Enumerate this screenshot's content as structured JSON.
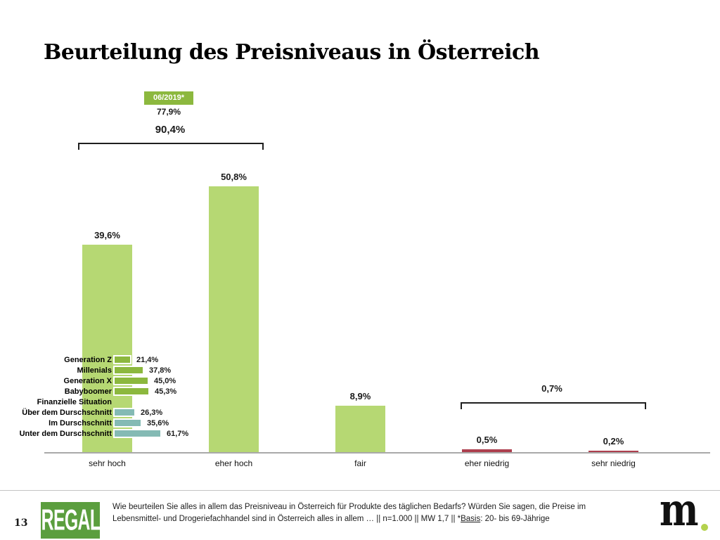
{
  "page": {
    "number": "13"
  },
  "title": "Beurteilung des Preisniveaus in Österreich",
  "annotations": {
    "badge_label": "06/2019*",
    "badge_value": "77,9%",
    "bracket_high_label": "90,4%",
    "bracket_low_label": "0,7%"
  },
  "chart_data": {
    "type": "bar",
    "title": "Beurteilung des Preisniveaus in Österreich",
    "unit": "%",
    "ylim": [
      0,
      100
    ],
    "grid": false,
    "categories": [
      "sehr hoch",
      "eher hoch",
      "fair",
      "eher niedrig",
      "sehr niedrig"
    ],
    "values": [
      39.6,
      50.8,
      8.9,
      0.5,
      0.2
    ],
    "value_labels": [
      "39,6%",
      "50,8%",
      "8,9%",
      "0,5%",
      "0,2%"
    ],
    "bar_color_keys": [
      "green",
      "green",
      "green",
      "red",
      "red"
    ],
    "annotations": [
      {
        "type": "badge",
        "label": "06/2019*",
        "value": "77,9%"
      },
      {
        "type": "bracket",
        "label": "90,4%",
        "covers": [
          "sehr hoch",
          "eher hoch"
        ]
      },
      {
        "type": "bracket",
        "label": "0,7%",
        "covers": [
          "eher niedrig",
          "sehr niedrig"
        ]
      }
    ],
    "breakdown": [
      {
        "label": "Generation Z",
        "value": 21.4,
        "display": "21,4%",
        "group": "generation"
      },
      {
        "label": "Millenials",
        "value": 37.8,
        "display": "37,8%",
        "group": "generation"
      },
      {
        "label": "Generation X",
        "value": 45.0,
        "display": "45,0%",
        "group": "generation"
      },
      {
        "label": "Babyboomer",
        "value": 45.3,
        "display": "45,3%",
        "group": "generation"
      },
      {
        "label": "Finanzielle Situation",
        "header": true
      },
      {
        "label": "Über dem Durschschnitt",
        "value": 26.3,
        "display": "26,3%",
        "group": "finanzielle-situation"
      },
      {
        "label": "Im Durschschnitt",
        "value": 35.6,
        "display": "35,6%",
        "group": "finanzielle-situation"
      },
      {
        "label": "Unter dem Durschschnitt",
        "value": 61.7,
        "display": "61,7%",
        "group": "finanzielle-situation"
      }
    ]
  },
  "footer": {
    "line1": "Wie beurteilen Sie alles in allem das Preisniveau in Österreich für Produkte des täglichen Bedarfs? Würden Sie sagen, die Preise im",
    "line2_pre": "Lebensmittel- und Drogeriefachhandel sind in Österreich alles in allem … || n=1.000 || MW 1,7 || *",
    "line2_underlined": "Basis",
    "line2_post": ": 20- bis 69-Jährige",
    "brand_left": "REGAL",
    "brand_right": "m"
  },
  "colors": {
    "bar_green": "#b6d873",
    "accent_green": "#8cb83e",
    "teal": "#84bab4",
    "bar_red": "#ad3f4e",
    "regal_green": "#5b9e3e",
    "dot_green": "#b4d24e",
    "baseline_gray": "#a9a9a9"
  }
}
